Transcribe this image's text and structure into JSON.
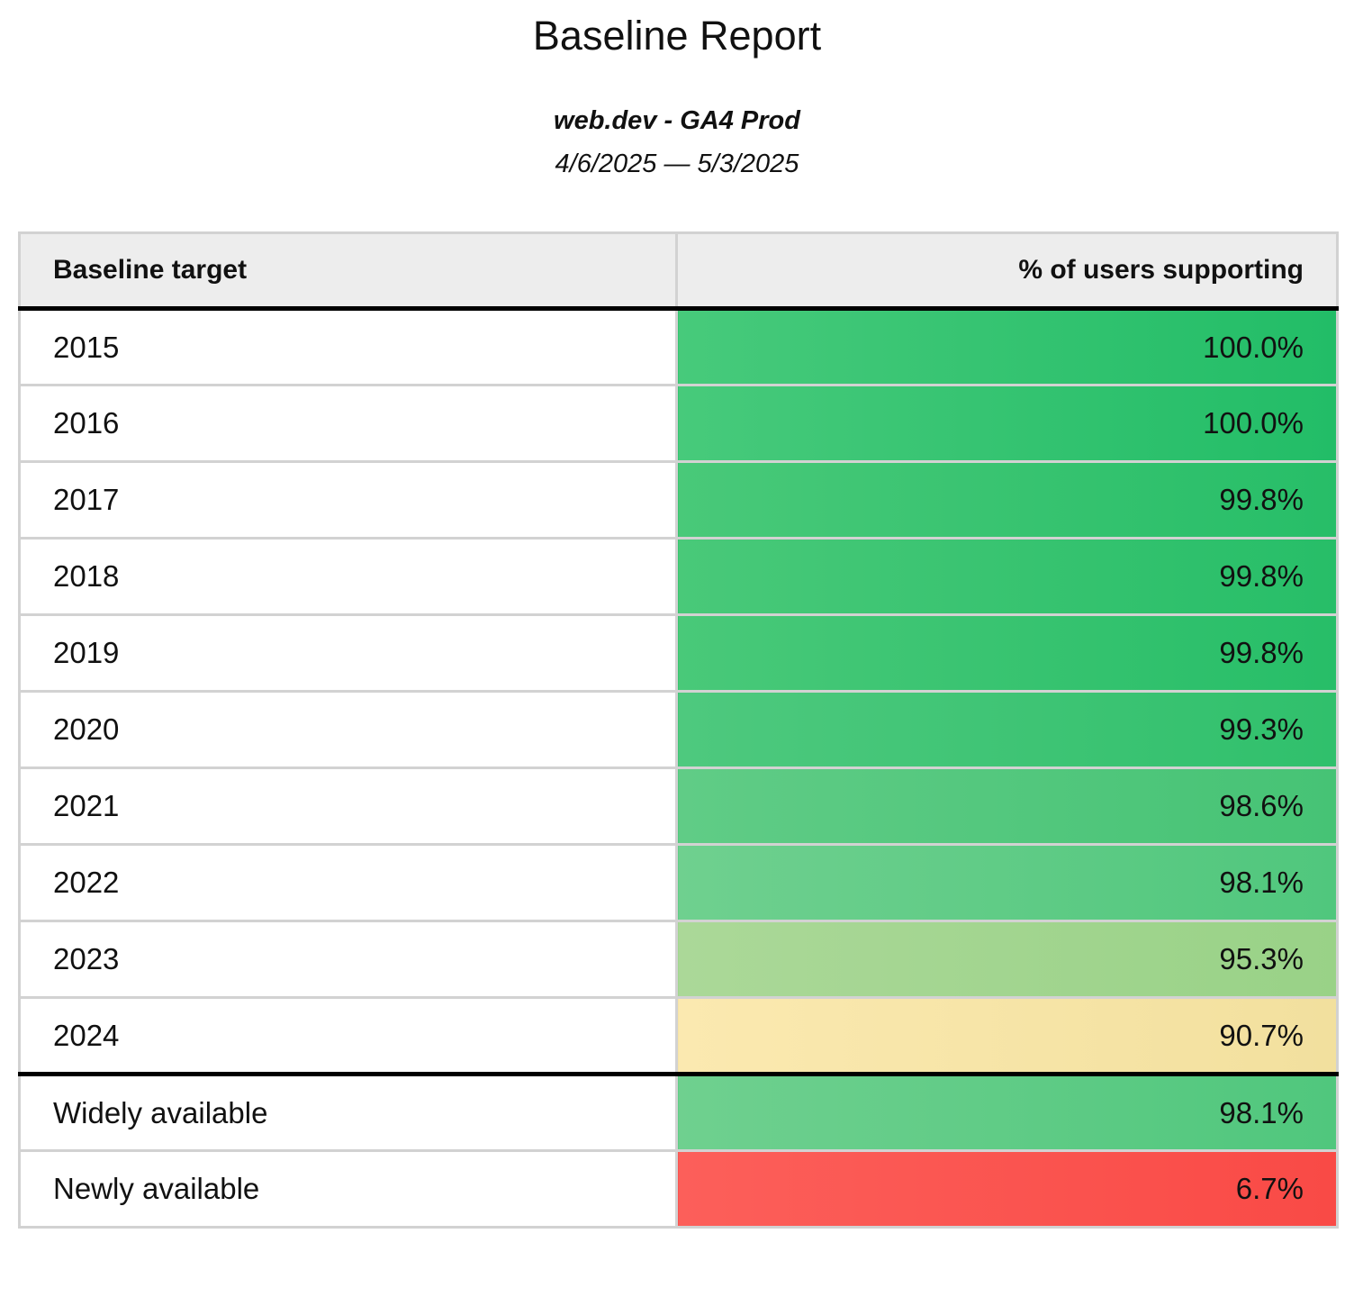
{
  "report": {
    "title": "Baseline Report",
    "subtitle": "web.dev - GA4 Prod",
    "date_range": "4/6/2025 — 5/3/2025"
  },
  "table": {
    "columns": [
      {
        "label": "Baseline target"
      },
      {
        "label": "% of users supporting"
      }
    ],
    "rows": [
      {
        "label": "2015",
        "value": "100.0%",
        "color_left": "#47ca7b",
        "color_right": "#22bd67",
        "divider_below": false
      },
      {
        "label": "2016",
        "value": "100.0%",
        "color_left": "#47ca7b",
        "color_right": "#22bd67",
        "divider_below": false
      },
      {
        "label": "2017",
        "value": "99.8%",
        "color_left": "#49c979",
        "color_right": "#27be68",
        "divider_below": false
      },
      {
        "label": "2018",
        "value": "99.8%",
        "color_left": "#49c979",
        "color_right": "#27be68",
        "divider_below": false
      },
      {
        "label": "2019",
        "value": "99.8%",
        "color_left": "#49c979",
        "color_right": "#27be68",
        "divider_below": false
      },
      {
        "label": "2020",
        "value": "99.3%",
        "color_left": "#4ec97e",
        "color_right": "#30c06c",
        "divider_below": false
      },
      {
        "label": "2021",
        "value": "98.6%",
        "color_left": "#60cc86",
        "color_right": "#46c375",
        "divider_below": false
      },
      {
        "label": "2022",
        "value": "98.1%",
        "color_left": "#6fd08f",
        "color_right": "#50c77d",
        "divider_below": false
      },
      {
        "label": "2023",
        "value": "95.3%",
        "color_left": "#abd898",
        "color_right": "#99d287",
        "divider_below": false
      },
      {
        "label": "2024",
        "value": "90.7%",
        "color_left": "#fbe9b0",
        "color_right": "#f2e09e",
        "divider_below": true
      },
      {
        "label": "Widely available",
        "value": "98.1%",
        "color_left": "#6fd08f",
        "color_right": "#50c77d",
        "divider_below": false
      },
      {
        "label": "Newly available",
        "value": "6.7%",
        "color_left": "#fc5f5a",
        "color_right": "#f94a46",
        "divider_below": false
      }
    ],
    "style": {
      "header_bg": "#ededed",
      "border_color": "#d2d2d2",
      "divider_color": "#000000"
    }
  },
  "chart_data": {
    "type": "table",
    "title": "Baseline Report",
    "subtitle": "web.dev - GA4 Prod",
    "date_range": "4/6/2025 — 5/3/2025",
    "columns": [
      "Baseline target",
      "% of users supporting"
    ],
    "rows": [
      {
        "baseline_target": "2015",
        "pct_users_supporting": 100.0
      },
      {
        "baseline_target": "2016",
        "pct_users_supporting": 100.0
      },
      {
        "baseline_target": "2017",
        "pct_users_supporting": 99.8
      },
      {
        "baseline_target": "2018",
        "pct_users_supporting": 99.8
      },
      {
        "baseline_target": "2019",
        "pct_users_supporting": 99.8
      },
      {
        "baseline_target": "2020",
        "pct_users_supporting": 99.3
      },
      {
        "baseline_target": "2021",
        "pct_users_supporting": 98.6
      },
      {
        "baseline_target": "2022",
        "pct_users_supporting": 98.1
      },
      {
        "baseline_target": "2023",
        "pct_users_supporting": 95.3
      },
      {
        "baseline_target": "2024",
        "pct_users_supporting": 90.7
      },
      {
        "baseline_target": "Widely available",
        "pct_users_supporting": 98.1
      },
      {
        "baseline_target": "Newly available",
        "pct_users_supporting": 6.7
      }
    ],
    "layout": {
      "value_cell_color_scale": "green (high) → yellow (mid) → red (low)",
      "section_break_after_row": "2024"
    }
  }
}
